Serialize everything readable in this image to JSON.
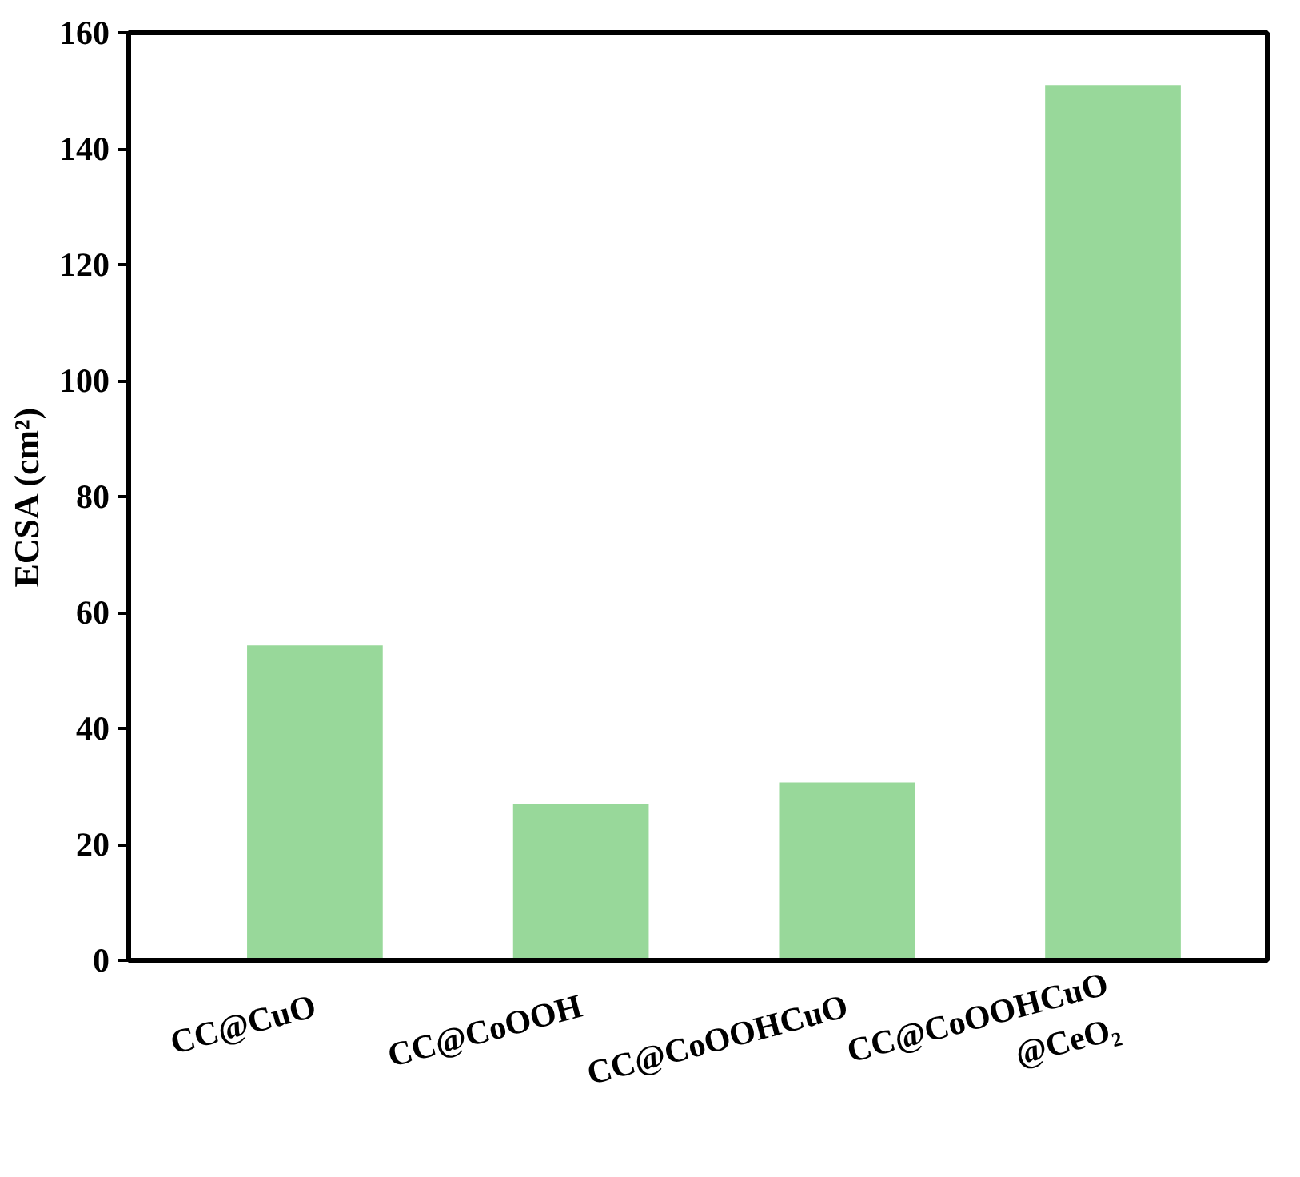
{
  "chart_data": {
    "type": "bar",
    "ylabel": "ECSA (cm²)",
    "categories": [
      "CC@CuO",
      "CC@CoOOH",
      "CC@CoOOHCuO",
      "CC@CoOOHCuO\n@CeO₂"
    ],
    "values": [
      54.3,
      26.9,
      30.7,
      151
    ],
    "color": "#98d89a",
    "ylim": [
      0,
      160
    ],
    "yticks": [
      0,
      20,
      40,
      60,
      80,
      100,
      120,
      140,
      160
    ],
    "grid": false
  }
}
